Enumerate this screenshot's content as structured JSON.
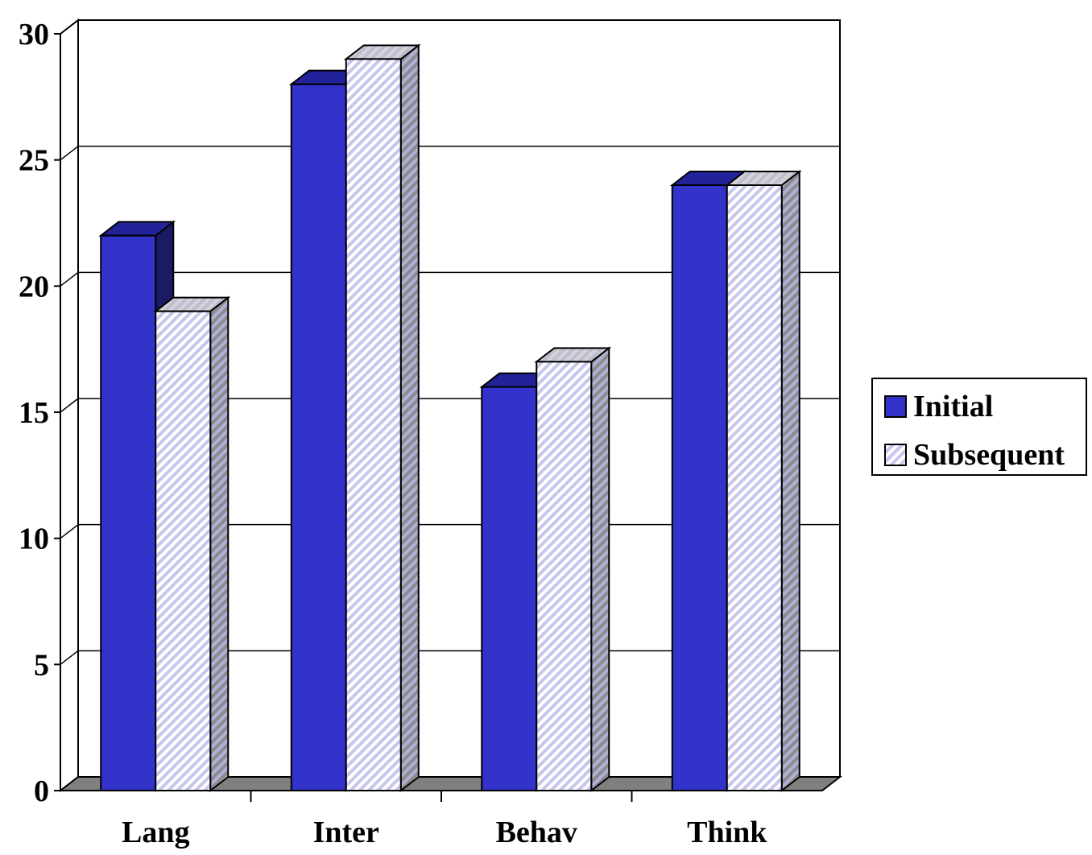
{
  "chart_data": {
    "type": "bar",
    "style": "3d-clustered-column",
    "categories": [
      "Lang",
      "Inter",
      "Behav",
      "Think"
    ],
    "series": [
      {
        "name": "Initial",
        "values": [
          22,
          28,
          16,
          24
        ],
        "color": "#3333cc",
        "fill": "solid"
      },
      {
        "name": "Subsequent",
        "values": [
          19,
          29,
          17,
          24
        ],
        "color": "#c6c6ee",
        "fill": "diagonal-hatch"
      }
    ],
    "title": "",
    "xlabel": "",
    "ylabel": "",
    "ylim": [
      0,
      30
    ],
    "yticks": [
      "0",
      "5",
      "10",
      "15",
      "20",
      "25",
      "30"
    ],
    "grid": true,
    "legend_position": "right"
  },
  "colors": {
    "initial_front": "#3333cc",
    "initial_top": "#22229a",
    "initial_side": "#1a1a66",
    "hatch_light": "#c6c6ee",
    "hatch_side": "#8c8c8c",
    "floor": "#808080",
    "grid": "#000000"
  }
}
